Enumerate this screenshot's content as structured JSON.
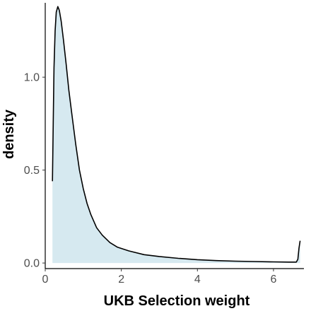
{
  "chart_data": {
    "type": "area",
    "title": "",
    "xlabel": "UKB Selection weight",
    "ylabel": "density",
    "xlim": [
      0,
      6.8
    ],
    "ylim": [
      -0.03,
      1.4
    ],
    "x_ticks": [
      0,
      2,
      4,
      6
    ],
    "x_tick_labels": [
      "0",
      "2",
      "4",
      "6"
    ],
    "y_ticks": [
      0.0,
      0.5,
      1.0
    ],
    "y_tick_labels": [
      "0.0",
      "0.5",
      "1.0"
    ],
    "grid": false,
    "legend": "none",
    "colors": {
      "fill": "#d6e9f0",
      "line": "#000000",
      "axis": "#000000"
    },
    "series": [
      {
        "x": [
          0.19,
          0.21,
          0.23,
          0.26,
          0.29,
          0.33,
          0.37,
          0.42,
          0.48,
          0.55,
          0.62,
          0.7,
          0.8,
          0.9,
          1.0,
          1.1,
          1.2,
          1.35,
          1.5,
          1.7,
          1.9,
          2.2,
          2.6,
          3.0,
          3.5,
          4.0,
          4.5,
          5.0,
          5.5,
          6.0,
          6.4,
          6.6,
          6.64,
          6.67,
          6.7
        ],
        "y": [
          0.44,
          0.75,
          1.05,
          1.25,
          1.35,
          1.38,
          1.36,
          1.3,
          1.2,
          1.07,
          0.93,
          0.8,
          0.64,
          0.5,
          0.4,
          0.32,
          0.26,
          0.19,
          0.15,
          0.11,
          0.085,
          0.065,
          0.045,
          0.035,
          0.025,
          0.018,
          0.013,
          0.01,
          0.008,
          0.006,
          0.005,
          0.005,
          0.02,
          0.08,
          0.12
        ]
      }
    ]
  }
}
